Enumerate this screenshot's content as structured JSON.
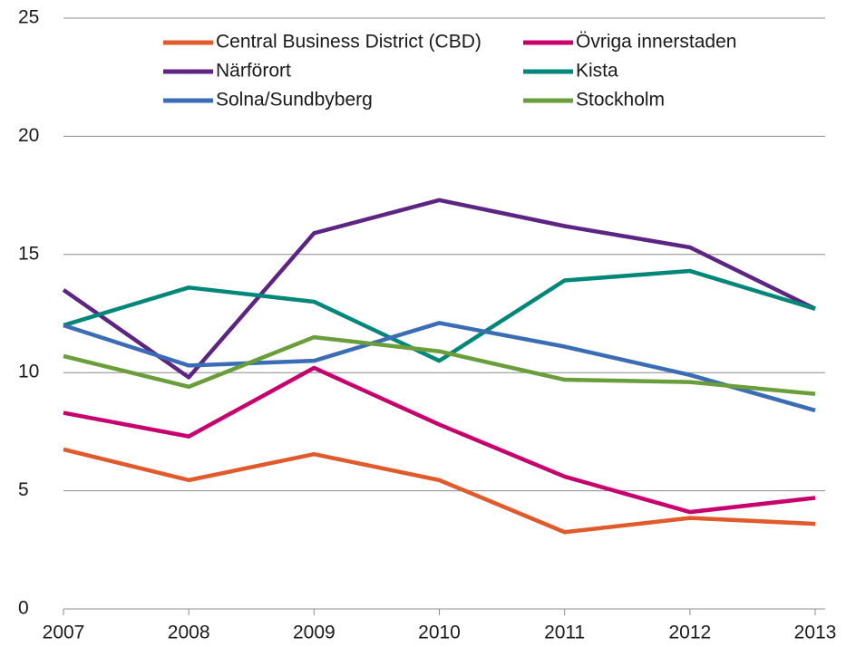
{
  "chart_data": {
    "type": "line",
    "x": [
      2007,
      2008,
      2009,
      2010,
      2011,
      2012,
      2013
    ],
    "xlim": [
      2007,
      2013
    ],
    "xticks": [
      2007,
      2008,
      2009,
      2010,
      2011,
      2012,
      2013
    ],
    "ylim": [
      0,
      25
    ],
    "yticks": [
      0,
      5,
      10,
      15,
      20,
      25
    ],
    "grid": true,
    "legend": "top",
    "series": [
      {
        "name": "Central Business District (CBD)",
        "color": "#e05a2b",
        "values": [
          6.75,
          5.45,
          6.55,
          5.45,
          3.25,
          3.85,
          3.6
        ]
      },
      {
        "name": "Övriga innerstaden",
        "color": "#c8006e",
        "values": [
          8.3,
          7.3,
          10.2,
          7.8,
          5.6,
          4.1,
          4.7
        ]
      },
      {
        "name": "Närförort",
        "color": "#5c2483",
        "values": [
          13.5,
          9.8,
          15.9,
          17.3,
          16.2,
          15.3,
          12.7
        ]
      },
      {
        "name": "Kista",
        "color": "#00877a",
        "values": [
          12.0,
          13.6,
          13.0,
          10.5,
          13.9,
          14.3,
          12.7
        ]
      },
      {
        "name": "Solna/Sundbyberg",
        "color": "#3a6db5",
        "values": [
          12.0,
          10.3,
          10.5,
          12.1,
          11.1,
          9.9,
          8.4
        ]
      },
      {
        "name": "Stockholm",
        "color": "#6a9e3a",
        "values": [
          10.7,
          9.4,
          11.5,
          10.9,
          9.7,
          9.6,
          9.1
        ]
      }
    ]
  }
}
